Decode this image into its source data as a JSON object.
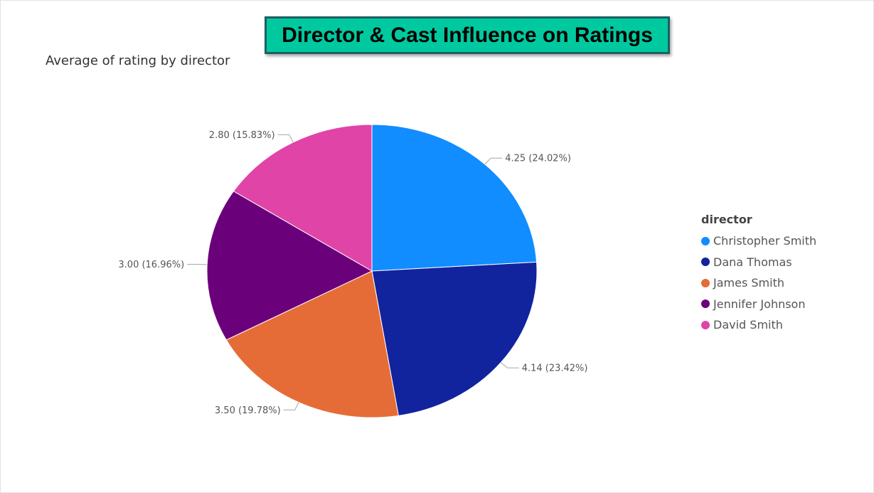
{
  "page_title": "Director & Cast Influence on Ratings",
  "chart_data": {
    "type": "pie",
    "title": "Average of rating by director",
    "legend_title": "director",
    "legend_position": "right",
    "slices": [
      {
        "name": "Christopher Smith",
        "value": 4.25,
        "label": "4.25 (24.02%)",
        "color": "#118dff"
      },
      {
        "name": "Dana Thomas",
        "value": 4.14,
        "label": "4.14 (23.42%)",
        "color": "#12239e"
      },
      {
        "name": "James Smith",
        "value": 3.5,
        "label": "3.50 (19.78%)",
        "color": "#e66c37"
      },
      {
        "name": "Jennifer Johnson",
        "value": 3.0,
        "label": "3.00 (16.96%)",
        "color": "#6b007b"
      },
      {
        "name": "David Smith",
        "value": 2.8,
        "label": "2.80 (15.83%)",
        "color": "#e044a7"
      }
    ]
  }
}
